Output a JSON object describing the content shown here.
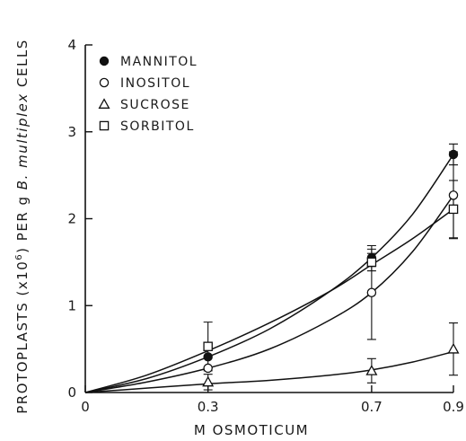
{
  "chart_data": {
    "type": "scatter",
    "xlabel": "M OSMOTICUM",
    "ylabel_prefix": "PROTOPLASTS (x10",
    "ylabel_exp": "6",
    "ylabel_mid": ") PER g ",
    "ylabel_species": "B. multiplex",
    "ylabel_suffix": " CELLS",
    "xlim": [
      0,
      0.9
    ],
    "ylim": [
      0,
      4
    ],
    "x_ticks": [
      {
        "value": 0,
        "label": "0"
      },
      {
        "value": 0.3,
        "label": "0.3"
      },
      {
        "value": 0.7,
        "label": "0.7"
      },
      {
        "value": 0.9,
        "label": "0.9"
      }
    ],
    "y_ticks": [
      {
        "value": 0,
        "label": "0"
      },
      {
        "value": 1,
        "label": "1"
      },
      {
        "value": 2,
        "label": "2"
      },
      {
        "value": 3,
        "label": "3"
      },
      {
        "value": 4,
        "label": "4"
      }
    ],
    "legend_position": "top-left",
    "series": [
      {
        "name": "MANNITOL",
        "marker": "filled-circle",
        "x": [
          0.3,
          0.7,
          0.9
        ],
        "y": [
          0.41,
          1.55,
          2.74
        ],
        "err": [
          0.0,
          0.1,
          0.12
        ],
        "curve": [
          [
            0,
            0
          ],
          [
            0.15,
            0.16
          ],
          [
            0.3,
            0.41
          ],
          [
            0.45,
            0.73
          ],
          [
            0.6,
            1.17
          ],
          [
            0.7,
            1.55
          ],
          [
            0.8,
            2.05
          ],
          [
            0.9,
            2.74
          ]
        ]
      },
      {
        "name": "INOSITOL",
        "marker": "open-circle",
        "x": [
          0.3,
          0.7,
          0.9
        ],
        "y": [
          0.28,
          1.15,
          2.27
        ],
        "err": [
          0.0,
          0.54,
          0.5
        ],
        "curve": [
          [
            0,
            0
          ],
          [
            0.15,
            0.12
          ],
          [
            0.3,
            0.28
          ],
          [
            0.45,
            0.5
          ],
          [
            0.6,
            0.84
          ],
          [
            0.7,
            1.15
          ],
          [
            0.8,
            1.62
          ],
          [
            0.9,
            2.27
          ]
        ]
      },
      {
        "name": "SUCROSE",
        "marker": "open-triangle",
        "x": [
          0.3,
          0.7,
          0.9
        ],
        "y": [
          0.12,
          0.25,
          0.5
        ],
        "err": [
          0.09,
          0.14,
          0.3
        ],
        "curve": [
          [
            0,
            0
          ],
          [
            0.15,
            0.05
          ],
          [
            0.3,
            0.1
          ],
          [
            0.45,
            0.14
          ],
          [
            0.6,
            0.2
          ],
          [
            0.7,
            0.26
          ],
          [
            0.8,
            0.35
          ],
          [
            0.9,
            0.47
          ]
        ]
      },
      {
        "name": "SORBITOL",
        "marker": "open-square",
        "x": [
          0.3,
          0.7,
          0.9
        ],
        "y": [
          0.53,
          1.5,
          2.11
        ],
        "err": [
          0.28,
          0.1,
          0.33
        ],
        "curve": [
          [
            0,
            0
          ],
          [
            0.15,
            0.2
          ],
          [
            0.3,
            0.48
          ],
          [
            0.45,
            0.8
          ],
          [
            0.6,
            1.17
          ],
          [
            0.7,
            1.47
          ],
          [
            0.8,
            1.77
          ],
          [
            0.9,
            2.11
          ]
        ]
      }
    ]
  }
}
